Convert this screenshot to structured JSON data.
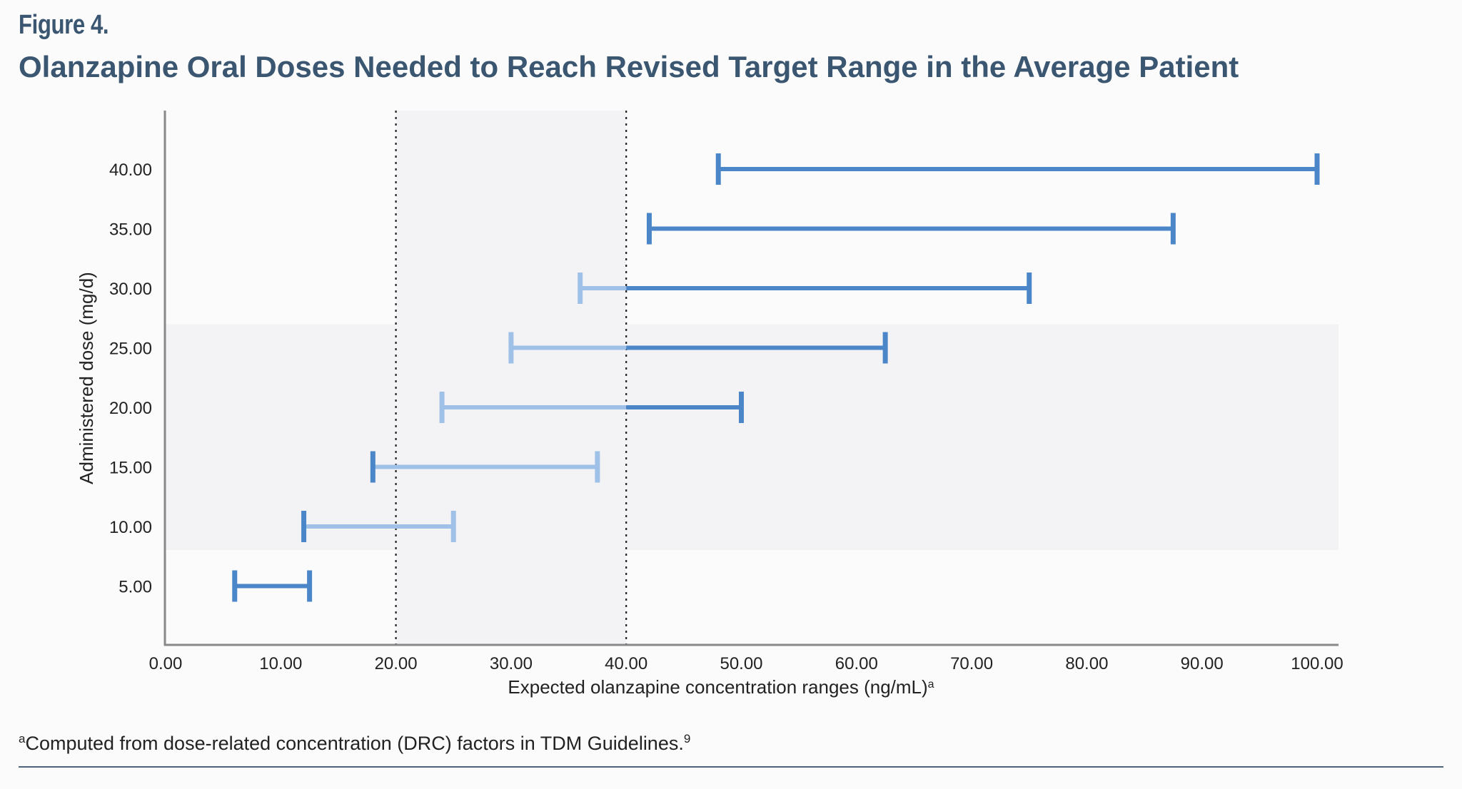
{
  "figure_label": "Figure 4.",
  "title": "Olanzapine Oral Doses Needed to Reach Revised Target Range in the Average Patient",
  "footnote": {
    "marker": "a",
    "text": "Computed from dose-related concentration (DRC) factors in TDM Guidelines.",
    "ref": "9"
  },
  "colors": {
    "title": "#3a5670",
    "bar_dark": "#4b86c8",
    "bar_light": "#9fc1e8",
    "rule": "#4c647a"
  },
  "chart_data": {
    "type": "range-bar",
    "xlabel": "Expected olanzapine concentration ranges (ng/mL)",
    "xlabel_superscript": "a",
    "ylabel": "Administered dose (mg/d)",
    "xlim": [
      0,
      104
    ],
    "x_ticks": [
      "0.00",
      "10.00",
      "20.00",
      "30.00",
      "40.00",
      "50.00",
      "60.00",
      "70.00",
      "80.00",
      "90.00",
      "100.00"
    ],
    "x_tick_values": [
      0,
      10,
      20,
      30,
      40,
      50,
      60,
      70,
      80,
      90,
      100
    ],
    "y_ticks": [
      "40.00",
      "35.00",
      "30.00",
      "25.00",
      "20.00",
      "15.00",
      "10.00",
      "5.00"
    ],
    "target_range": [
      20,
      40
    ],
    "target_range_style": "dotted vertical lines with light shaded band",
    "shaded_dose_band": [
      10,
      25
    ],
    "ranges": [
      {
        "dose": 5,
        "low": 6,
        "high": 12.5
      },
      {
        "dose": 10,
        "low": 12,
        "high": 25
      },
      {
        "dose": 15,
        "low": 18,
        "high": 37.5
      },
      {
        "dose": 20,
        "low": 24,
        "high": 50
      },
      {
        "dose": 25,
        "low": 30,
        "high": 62.5
      },
      {
        "dose": 30,
        "low": 36,
        "high": 75
      },
      {
        "dose": 35,
        "low": 42,
        "high": 87.5
      },
      {
        "dose": 40,
        "low": 48,
        "high": 100
      }
    ],
    "grid": false,
    "legend": "none"
  }
}
